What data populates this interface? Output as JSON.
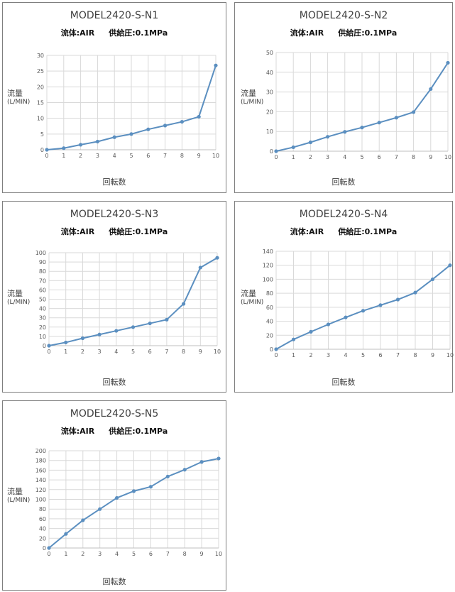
{
  "common": {
    "subtitle_fluid": "流体:AIR",
    "subtitle_pressure": "供給圧:0.1MPa",
    "ylabel": "流量",
    "yunit": "(L/MIN)",
    "xlabel": "回転数",
    "line_color": "#5b8fc0"
  },
  "chart_data": [
    {
      "type": "line",
      "title": "MODEL2420-S-N1",
      "subtitle": "流体:AIR 供給圧:0.1MPa",
      "xlabel": "回転数",
      "ylabel": "流量 (L/MIN)",
      "x": [
        0,
        1,
        2,
        3,
        4,
        5,
        6,
        7,
        8,
        9,
        10
      ],
      "ylim": [
        0,
        30
      ],
      "ystep": 5,
      "xlim": [
        0,
        10
      ],
      "grid": true,
      "series": [
        {
          "values": [
            0,
            0.5,
            1.6,
            2.6,
            4,
            5,
            6.5,
            7.7,
            8.9,
            10.5,
            26.8
          ]
        }
      ]
    },
    {
      "type": "line",
      "title": "MODEL2420-S-N2",
      "subtitle": "流体:AIR 供給圧:0.1MPa",
      "xlabel": "回転数",
      "ylabel": "流量 (L/MIN)",
      "x": [
        0,
        1,
        2,
        3,
        4,
        5,
        6,
        7,
        8,
        9,
        10
      ],
      "ylim": [
        0,
        50
      ],
      "ystep": 10,
      "xlim": [
        0,
        10
      ],
      "grid": true,
      "series": [
        {
          "values": [
            0,
            2,
            4.5,
            7.3,
            9.8,
            12,
            14.5,
            17,
            19.8,
            31.5,
            44.8
          ]
        }
      ]
    },
    {
      "type": "line",
      "title": "MODEL2420-S-N3",
      "subtitle": "流体:AIR 供給圧:0.1MPa",
      "xlabel": "回転数",
      "ylabel": "流量 (L/MIN)",
      "x": [
        0,
        1,
        2,
        3,
        4,
        5,
        6,
        7,
        8,
        9,
        10
      ],
      "ylim": [
        0,
        100
      ],
      "ystep": 10,
      "xlim": [
        0,
        10
      ],
      "grid": true,
      "series": [
        {
          "values": [
            0,
            3.5,
            8,
            12,
            16,
            20,
            24,
            28,
            45,
            84,
            94.5
          ]
        }
      ]
    },
    {
      "type": "line",
      "title": "MODEL2420-S-N4",
      "subtitle": "流体:AIR 供給圧:0.1MPa",
      "xlabel": "回転数",
      "ylabel": "流量 (L/MIN)",
      "x": [
        0,
        1,
        2,
        3,
        4,
        5,
        6,
        7,
        8,
        9,
        10
      ],
      "ylim": [
        0,
        140
      ],
      "ystep": 20,
      "xlim": [
        0,
        10
      ],
      "grid": true,
      "series": [
        {
          "values": [
            0,
            14,
            25,
            35.5,
            45.5,
            55,
            63,
            71,
            81,
            100,
            120
          ]
        }
      ]
    },
    {
      "type": "line",
      "title": "MODEL2420-S-N5",
      "subtitle": "流体:AIR 供給圧:0.1MPa",
      "xlabel": "回転数",
      "ylabel": "流量 (L/MIN)",
      "x": [
        0,
        1,
        2,
        3,
        4,
        5,
        6,
        7,
        8,
        9,
        10
      ],
      "ylim": [
        0,
        200
      ],
      "ystep": 20,
      "xlim": [
        0,
        10
      ],
      "grid": true,
      "series": [
        {
          "values": [
            0,
            29,
            57,
            80,
            103,
            117,
            126,
            147,
            161,
            177,
            184
          ]
        }
      ]
    }
  ]
}
